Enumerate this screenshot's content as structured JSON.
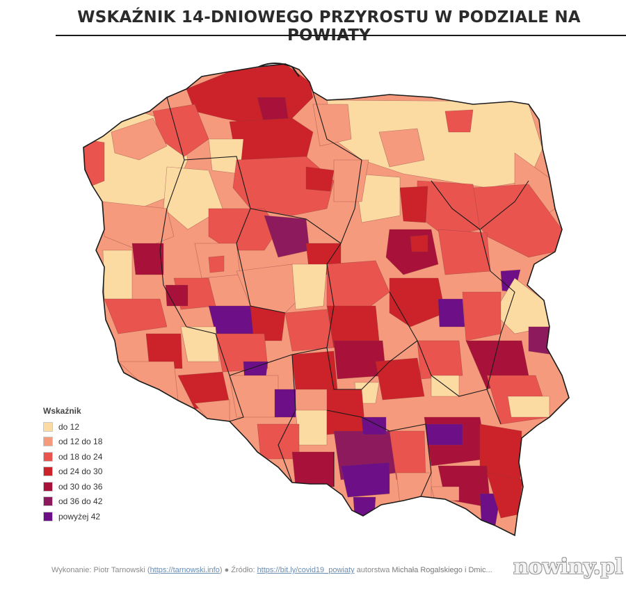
{
  "title": "WSKAŹNIK 14-DNIOWEGO PRZYROSTU W PODZIALE NA POWIATY",
  "legend": {
    "title": "Wskaźnik",
    "items": [
      {
        "label": "do 12",
        "color": "#fcdba3"
      },
      {
        "label": "od 12 do 18",
        "color": "#f59a7c"
      },
      {
        "label": "od 18 do 24",
        "color": "#e9544f"
      },
      {
        "label": "od 24 do 30",
        "color": "#cc2229"
      },
      {
        "label": "od 30 do 36",
        "color": "#a8123a"
      },
      {
        "label": "od 36 do 42",
        "color": "#8e1a5e"
      },
      {
        "label": "powyżej 42",
        "color": "#6d0f87"
      }
    ]
  },
  "footer": {
    "prefix": "Wykonanie: ",
    "author": "Piotr Tarnowski",
    "author_link": "https://tarnowski.info",
    "source_label": "Źródło: ",
    "source_link": "https://bit.ly/covid19_powiaty",
    "suffix": " autorstwa ",
    "source_author": "Michała Rogalskiego i Dmic..."
  },
  "watermark": "nowiny.pl"
}
